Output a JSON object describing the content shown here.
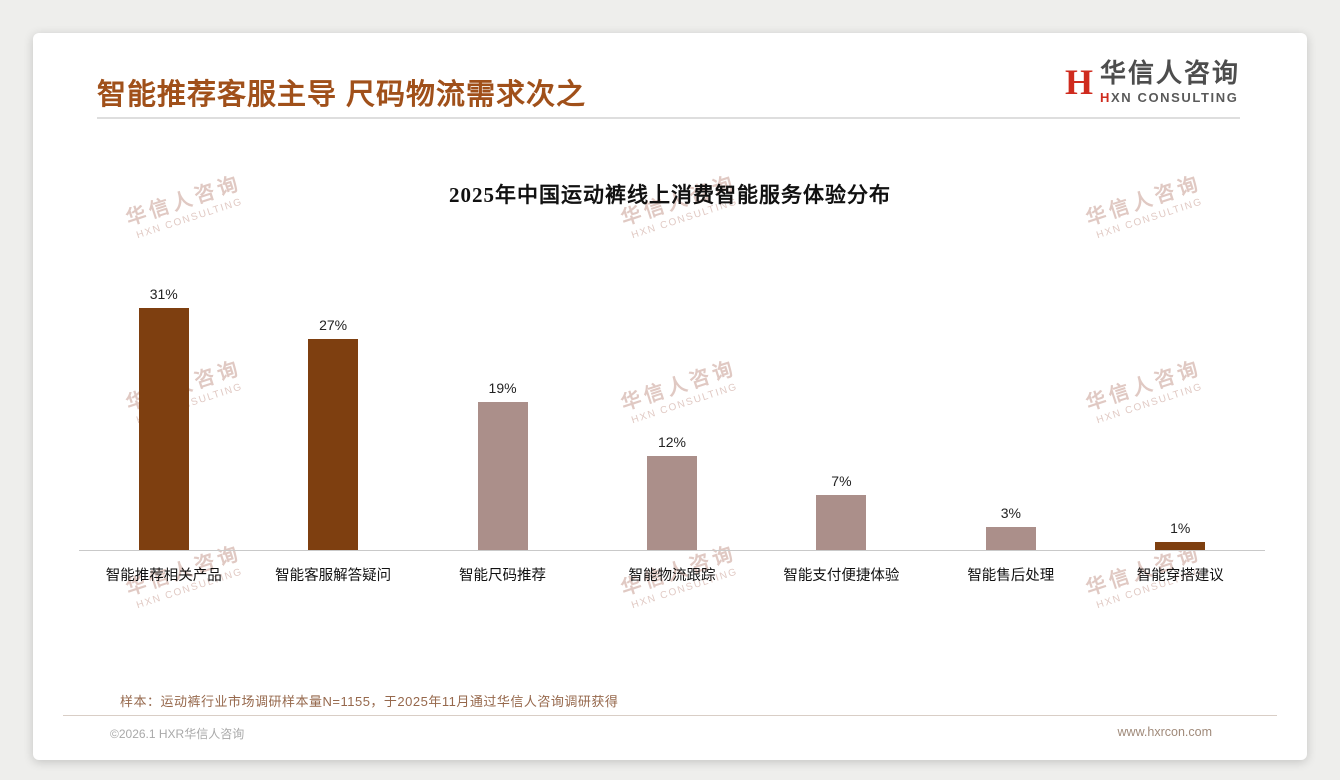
{
  "header": {
    "title": "智能推荐客服主导 尺码物流需求次之",
    "logo": {
      "icon": "H",
      "name": "华信人咨询",
      "subtitle": "HXN CONSULTING"
    }
  },
  "chart_data": {
    "type": "bar",
    "title": "2025年中国运动裤线上消费智能服务体验分布",
    "categories": [
      "智能推荐相关产品",
      "智能客服解答疑问",
      "智能尺码推荐",
      "智能物流跟踪",
      "智能支付便捷体验",
      "智能售后处理",
      "智能穿搭建议"
    ],
    "values": [
      31,
      27,
      19,
      12,
      7,
      3,
      1
    ],
    "value_labels": [
      "31%",
      "27%",
      "19%",
      "12%",
      "7%",
      "3%",
      "1%"
    ],
    "unit": "%",
    "bar_colors": [
      "#7e3f10",
      "#7e3f10",
      "#ab8f8a",
      "#ab8f8a",
      "#ab8f8a",
      "#ab8f8a",
      "#7e3f10"
    ],
    "ylim": [
      0,
      35
    ],
    "grid": false,
    "legend": false,
    "xlabel": "",
    "ylabel": ""
  },
  "watermark": {
    "line1": "华信人咨询",
    "line2": "HXN CONSULTING"
  },
  "footnote": "样本：运动裤行业市场调研样本量N=1155，于2025年11月通过华信人咨询调研获得",
  "footer": {
    "left": "©2026.1 HXR华信人咨询",
    "right": "www.hxrcon.com"
  },
  "colors": {
    "accent": "#a0501a",
    "bar_dark": "#7e3f10",
    "bar_light": "#ab8f8a",
    "logo_red": "#cf2b1e",
    "watermark": "#c89d93"
  }
}
